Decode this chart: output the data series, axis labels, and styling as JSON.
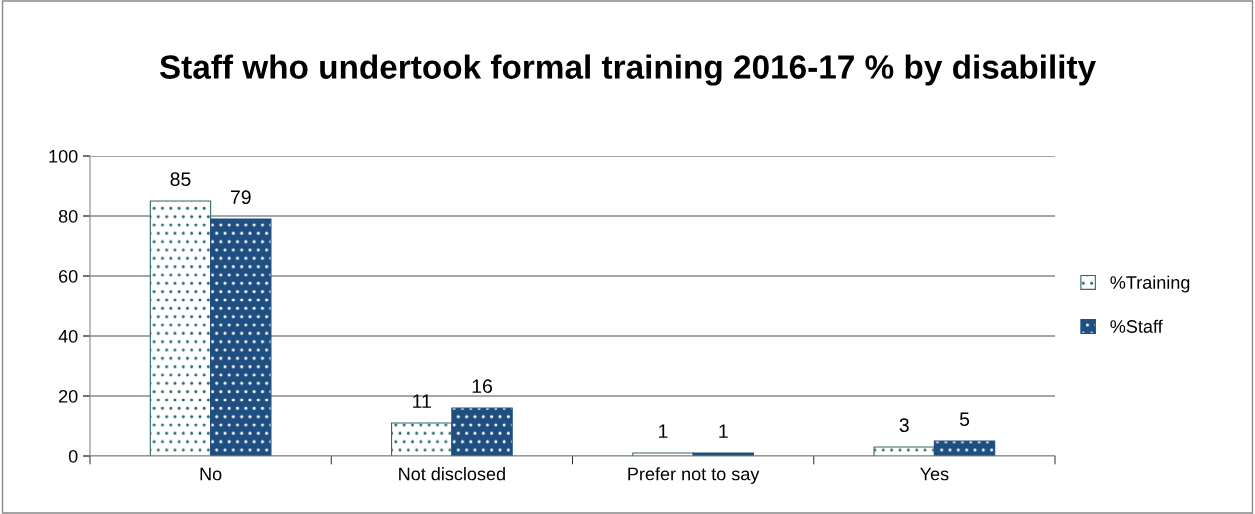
{
  "chart_data": {
    "type": "bar",
    "title": "Staff who undertook formal training 2016-17 % by disability",
    "categories": [
      "No",
      "Not disclosed",
      "Prefer not to say",
      "Yes"
    ],
    "series": [
      {
        "name": "%Training",
        "color": "#2f6b6b",
        "values": [
          85,
          11,
          1,
          3
        ]
      },
      {
        "name": "%Staff",
        "color": "#1f4e80",
        "values": [
          79,
          16,
          1,
          5
        ]
      }
    ],
    "ylim": [
      0,
      100
    ],
    "yticks": [
      0,
      20,
      40,
      60,
      80,
      100
    ],
    "grid": "y",
    "legend": "right",
    "data_labels": true
  }
}
